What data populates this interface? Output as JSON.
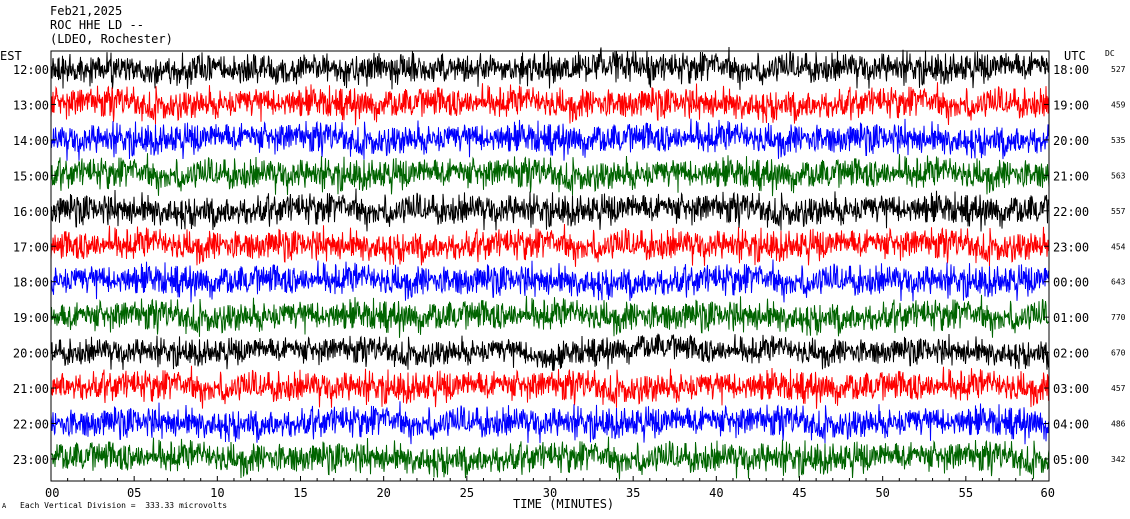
{
  "header": {
    "date": "Feb21,2025",
    "station": "ROC HHE LD --",
    "network": "(LDEO, Rochester)"
  },
  "left_axis_label": "EST",
  "right_axis_label": "UTC",
  "dc_label": "DC",
  "footer": {
    "scale_note": "Each Vertical Division =  333.33 microvolts",
    "corner_mark": "A"
  },
  "chart_data": {
    "type": "line",
    "title": "Feb21,2025",
    "xlabel": "TIME (MINUTES)",
    "ylabel": "",
    "xlim": [
      0,
      60
    ],
    "x_ticks": [
      "00",
      "05",
      "10",
      "15",
      "20",
      "25",
      "30",
      "35",
      "40",
      "45",
      "50",
      "55",
      "60"
    ],
    "line_colors": [
      "#000000",
      "#ff0000",
      "#0000ff",
      "#006400"
    ],
    "series": [
      {
        "est": "12:00",
        "utc": "18:00",
        "dc": "527",
        "color": "#000000"
      },
      {
        "est": "13:00",
        "utc": "19:00",
        "dc": "459",
        "color": "#ff0000"
      },
      {
        "est": "14:00",
        "utc": "20:00",
        "dc": "535",
        "color": "#0000ff"
      },
      {
        "est": "15:00",
        "utc": "21:00",
        "dc": "563",
        "color": "#006400"
      },
      {
        "est": "16:00",
        "utc": "22:00",
        "dc": "557",
        "color": "#000000"
      },
      {
        "est": "17:00",
        "utc": "23:00",
        "dc": "454",
        "color": "#ff0000"
      },
      {
        "est": "18:00",
        "utc": "00:00",
        "dc": "643",
        "color": "#0000ff"
      },
      {
        "est": "19:00",
        "utc": "01:00",
        "dc": "770",
        "color": "#006400"
      },
      {
        "est": "20:00",
        "utc": "02:00",
        "dc": "670",
        "color": "#000000"
      },
      {
        "est": "21:00",
        "utc": "03:00",
        "dc": "457",
        "color": "#ff0000"
      },
      {
        "est": "22:00",
        "utc": "04:00",
        "dc": "486",
        "color": "#0000ff"
      },
      {
        "est": "23:00",
        "utc": "05:00",
        "dc": "342",
        "color": "#006400"
      }
    ]
  }
}
